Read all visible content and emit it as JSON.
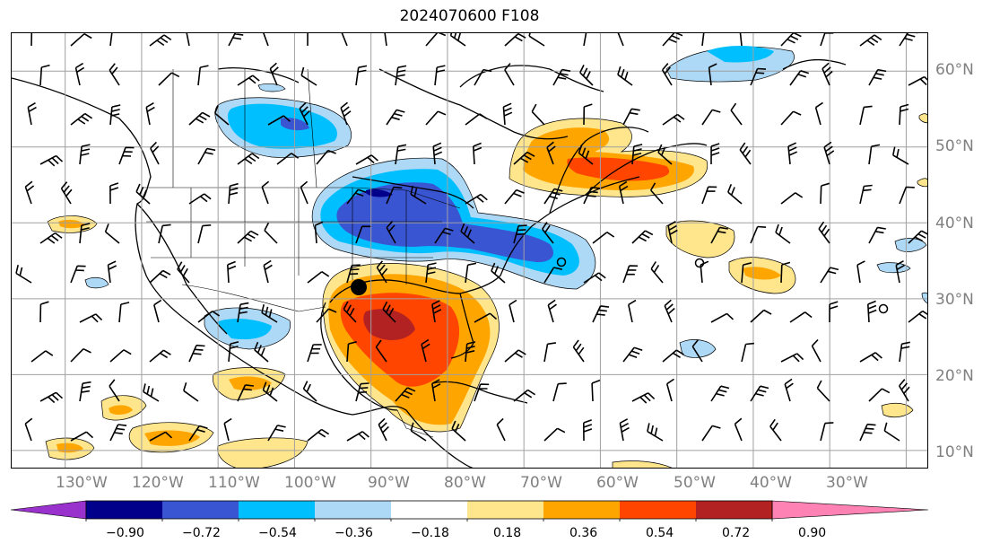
{
  "title": "2024070600 F108",
  "lat_labels": [
    "60°N",
    "50°N",
    "40°N",
    "30°N",
    "20°N",
    "10°N"
  ],
  "lon_labels": [
    "130°W",
    "120°W",
    "110°W",
    "100°W",
    "90°W",
    "80°W",
    "70°W",
    "60°W",
    "50°W",
    "40°W",
    "30°W"
  ],
  "colorbar": {
    "tick_labels": [
      "−0.90",
      "−0.72",
      "−0.54",
      "−0.36",
      "−0.18",
      "0.18",
      "0.36",
      "0.54",
      "0.72",
      "0.90"
    ],
    "colors": [
      "#9932cc",
      "#00008b",
      "#3a55d2",
      "#00bfff",
      "#add8f6",
      "#ffffff",
      "#ffe68c",
      "#ffa500",
      "#ff4500",
      "#b22222",
      "#ff82b4"
    ]
  },
  "map": {
    "extent_lon": [
      -137,
      -17
    ],
    "extent_lat": [
      7.5,
      65
    ],
    "graticule_lon_step": 10,
    "graticule_lat_step": 10,
    "colors": {
      "grid": "#a0a0a0",
      "coast": "#000000",
      "barb": "#000000"
    }
  }
}
